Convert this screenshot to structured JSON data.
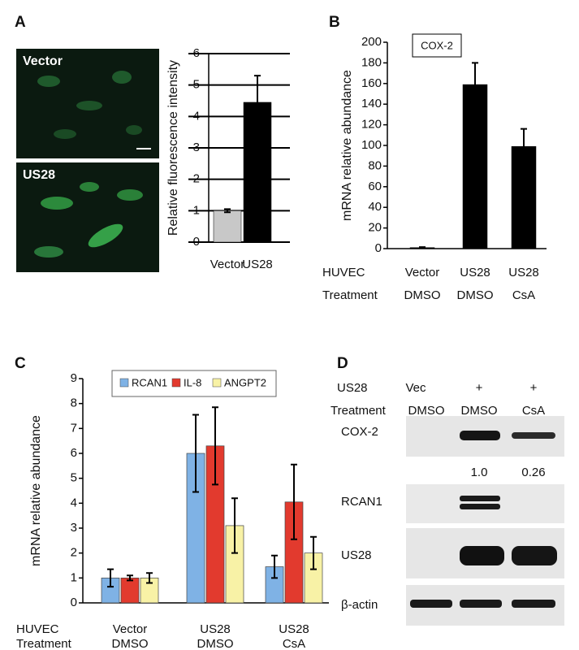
{
  "panel_labels": [
    "A",
    "B",
    "C",
    "D"
  ],
  "micrographs": [
    "Vector",
    "US28"
  ],
  "chart_data": [
    {
      "type": "bar",
      "ylabel": "Relative fluorescence intensity",
      "categories": [
        "Vector",
        "US28"
      ],
      "values": [
        1.0,
        4.45
      ],
      "errors": [
        0.05,
        0.85
      ],
      "colors": [
        "#c8c8c8",
        "#000000"
      ],
      "ylim": [
        0,
        6
      ],
      "yticks": [
        0,
        1,
        2,
        3,
        4,
        5,
        6
      ],
      "grid": true
    },
    {
      "type": "bar",
      "ylabel": "mRNA  relative abundance",
      "annotation": "COX-2",
      "row_labels": [
        "HUVEC",
        "Treatment"
      ],
      "categories": [
        "Vector",
        "US28",
        "US28"
      ],
      "treatments": [
        "DMSO",
        "DMSO",
        "CsA"
      ],
      "values": [
        1,
        159,
        99
      ],
      "errors": [
        0.5,
        21,
        17
      ],
      "colors": [
        "#000000",
        "#000000",
        "#000000"
      ],
      "ylim": [
        0,
        200
      ],
      "yticks": [
        0,
        20,
        40,
        60,
        80,
        100,
        120,
        140,
        160,
        180,
        200
      ],
      "grid": false
    },
    {
      "type": "grouped_bar",
      "ylabel": "mRNA  relative abundance",
      "row_labels": [
        "HUVEC",
        "Treatment"
      ],
      "categories": [
        "Vector",
        "US28",
        "US28"
      ],
      "treatments": [
        "DMSO",
        "DMSO",
        "CsA"
      ],
      "series": [
        {
          "name": "RCAN1",
          "color": "#7fb2e5",
          "values": [
            1.0,
            6.0,
            1.45
          ],
          "errors": [
            0.35,
            1.55,
            0.45
          ]
        },
        {
          "name": "IL-8",
          "color": "#e23a2e",
          "values": [
            1.0,
            6.3,
            4.05
          ],
          "errors": [
            0.1,
            1.55,
            1.5
          ]
        },
        {
          "name": "ANGPT2",
          "color": "#f8f2a6",
          "values": [
            1.0,
            3.1,
            2.0
          ],
          "errors": [
            0.2,
            1.1,
            0.65
          ]
        }
      ],
      "ylim": [
        0,
        9
      ],
      "yticks": [
        0,
        1,
        2,
        3,
        4,
        5,
        6,
        7,
        8,
        9
      ],
      "grid": false,
      "legend": "top"
    }
  ],
  "blot": {
    "header": [
      {
        "label": "US28",
        "values": [
          "Vec",
          "+",
          "+"
        ]
      },
      {
        "label": "Treatment",
        "values": [
          "DMSO",
          "DMSO",
          "CsA"
        ]
      }
    ],
    "bands": [
      "COX-2",
      "RCAN1",
      "US28",
      "β-actin"
    ],
    "quantification": [
      "1.0",
      "0.26"
    ]
  }
}
